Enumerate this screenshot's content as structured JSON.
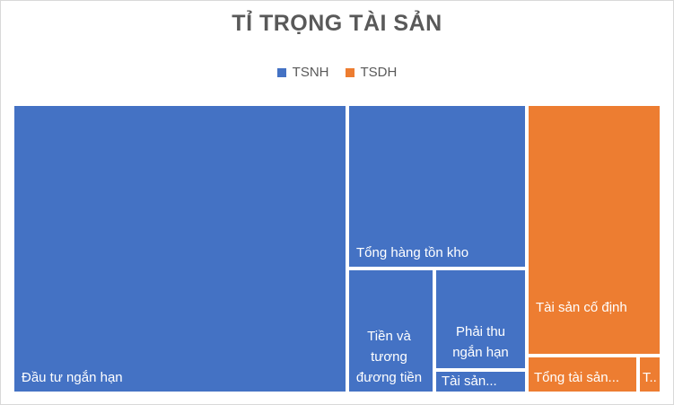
{
  "chart_data": {
    "type": "treemap",
    "title": "TỈ TRỌNG TÀI SẢN",
    "legend": {
      "placement": "top",
      "items": [
        {
          "name": "TSNH",
          "color": "#4472c4"
        },
        {
          "name": "TSDH",
          "color": "#ed7d31"
        }
      ]
    },
    "tiles": [
      {
        "label": "Đầu tư ngắn hạn",
        "group": "TSNH",
        "value": 119700
      },
      {
        "label": "Tổng hàng tồn kho",
        "group": "TSNH",
        "value": 36300
      },
      {
        "label": "Tiền và tương đương tiền",
        "group": "TSNH",
        "value": 17600
      },
      {
        "label": "Phải thu ngắn hạn",
        "group": "TSNH",
        "value": 15100
      },
      {
        "label": "Tài sản...",
        "group": "TSNH",
        "value": 2700
      },
      {
        "label": "Tài sản cố định",
        "group": "TSDH",
        "value": 44000
      },
      {
        "label": "Tổng tài sản...",
        "group": "TSDH",
        "value": 4900
      },
      {
        "label": "T...",
        "group": "TSDH",
        "value": 1100
      }
    ]
  }
}
